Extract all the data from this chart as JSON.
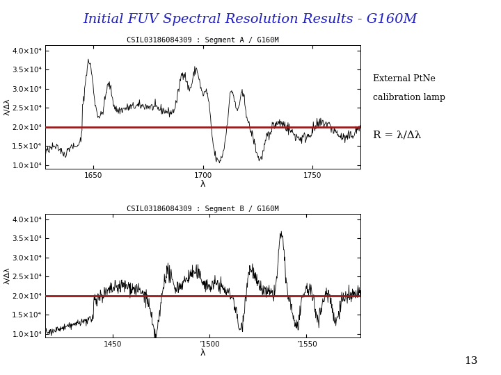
{
  "title": "Initial FUV Spectral Resolution Results - G160M",
  "title_color": "#1F1FBF",
  "title_fontsize": 14,
  "background_color": "#ffffff",
  "page_number": "13",
  "plot_A": {
    "title": "CSIL03186084309 : Segment A / G160M",
    "xlabel": "λ",
    "ylabel": "λ/Δλ",
    "xlim": [
      1628,
      1772
    ],
    "ylim": [
      9000,
      41500.0
    ],
    "redline_y": 20000,
    "xticks": [
      1650,
      1700,
      1750
    ],
    "yticks": [
      10000.0,
      15000.0,
      20000.0,
      25000.0,
      30000.0,
      35000.0,
      40000.0
    ],
    "ytick_labels": [
      "1.0×10⁴",
      "1.5×10⁴",
      "2.0×10⁴",
      "2.5×10⁴",
      "3.0×10⁴",
      "3.5×10⁴",
      "4.0×10⁴"
    ]
  },
  "plot_B": {
    "title": "CSIL03186084309 : Segment B / G160M",
    "xlabel": "λ",
    "ylabel": "λ/Δλ",
    "xlim": [
      1415,
      1578
    ],
    "ylim": [
      9000,
      41500.0
    ],
    "redline_y": 20000,
    "xticks": [
      1450,
      1500,
      1550
    ],
    "xtick_labels": [
      "1450",
      "’1500",
      "’1550"
    ],
    "yticks": [
      10000.0,
      15000.0,
      20000.0,
      25000.0,
      30000.0,
      35000.0,
      40000.0
    ],
    "ytick_labels": [
      "1.0×10⁴",
      "1.5×10⁴",
      "2.0×10⁴",
      "2.5×10⁴",
      "3.0×10⁴",
      "3.5×10⁴",
      "4.0×10⁴"
    ]
  },
  "annotation_text1": "External PtNe",
  "annotation_text2": "calibration lamp",
  "annotation_R": "R = λ/Δλ",
  "red_color": "#9B1A1A",
  "line_color": "#000000",
  "red_linewidth": 2.0
}
